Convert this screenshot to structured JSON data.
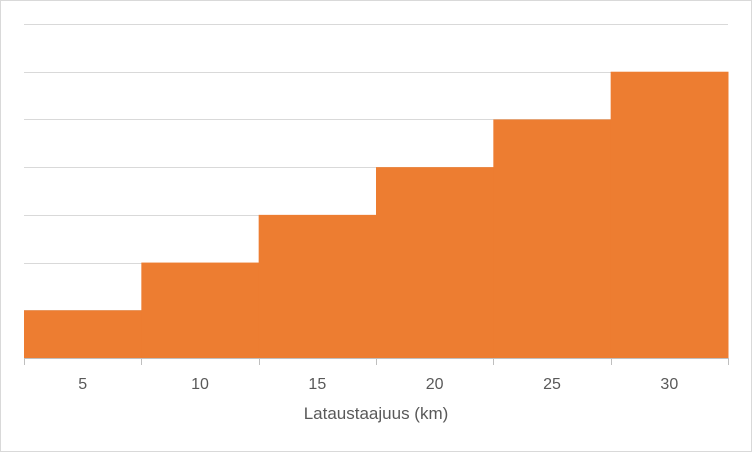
{
  "chart_data": {
    "type": "bar",
    "categories": [
      "5",
      "10",
      "15",
      "20",
      "25",
      "30"
    ],
    "values": [
      1,
      2,
      3,
      4,
      5,
      6
    ],
    "title": "",
    "xlabel": "Lataustaajuus (km)",
    "ylabel": "",
    "ylim": [
      0,
      7
    ],
    "grid": true,
    "legend": "none",
    "bar_gap": "none",
    "colors": {
      "bar": "#ED7D31",
      "gridline": "#d9d9d9",
      "axis": "#bfbfbf",
      "text": "#595959"
    }
  }
}
